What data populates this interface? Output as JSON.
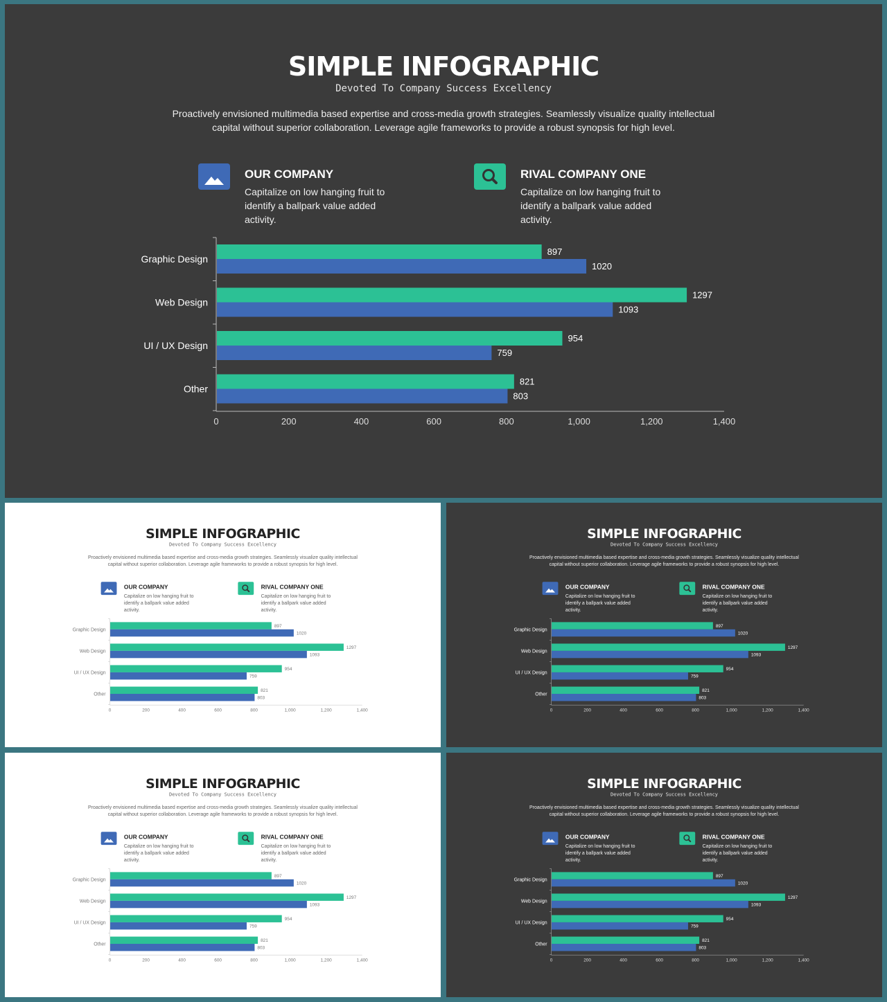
{
  "header": {
    "title": "SIMPLE INFOGRAPHIC",
    "subtitle": "Devoted To Company Success Excellency",
    "paragraph": "Proactively envisioned multimedia based expertise and cross-media growth strategies. Seamlessly visualize quality intellectual capital without superior collaboration. Leverage agile frameworks to provide a robust synopsis for high level."
  },
  "legend": {
    "our_company": {
      "title": "OUR COMPANY",
      "desc": "Capitalize on low hanging fruit to identify a ballpark value added activity.",
      "icon": "image-icon",
      "color": "#3f6ab6"
    },
    "rival_company": {
      "title": "RIVAL COMPANY ONE",
      "desc": "Capitalize on low hanging fruit to identify a ballpark value added activity.",
      "icon": "search-icon",
      "color": "#2cc195"
    }
  },
  "colors": {
    "dark_bg": "#3b3b3b",
    "light_bg": "#ffffff",
    "frame": "#3b7681",
    "green": "#2cc195",
    "blue": "#3f6ab6"
  },
  "chart_data": {
    "type": "bar",
    "orientation": "horizontal",
    "categories": [
      "Graphic Design",
      "Web Design",
      "UI / UX Design",
      "Other"
    ],
    "series": [
      {
        "values": [
          897,
          1297,
          954,
          821
        ]
      },
      {
        "values": [
          1020,
          1093,
          759,
          803
        ]
      }
    ],
    "xlim": [
      0,
      1400
    ],
    "xticks": [
      0,
      200,
      400,
      600,
      800,
      1000,
      1200,
      1400
    ],
    "xtick_labels": [
      "0",
      "200",
      "400",
      "600",
      "800",
      "1,000",
      "1,200",
      "1,400"
    ],
    "grid": false
  }
}
